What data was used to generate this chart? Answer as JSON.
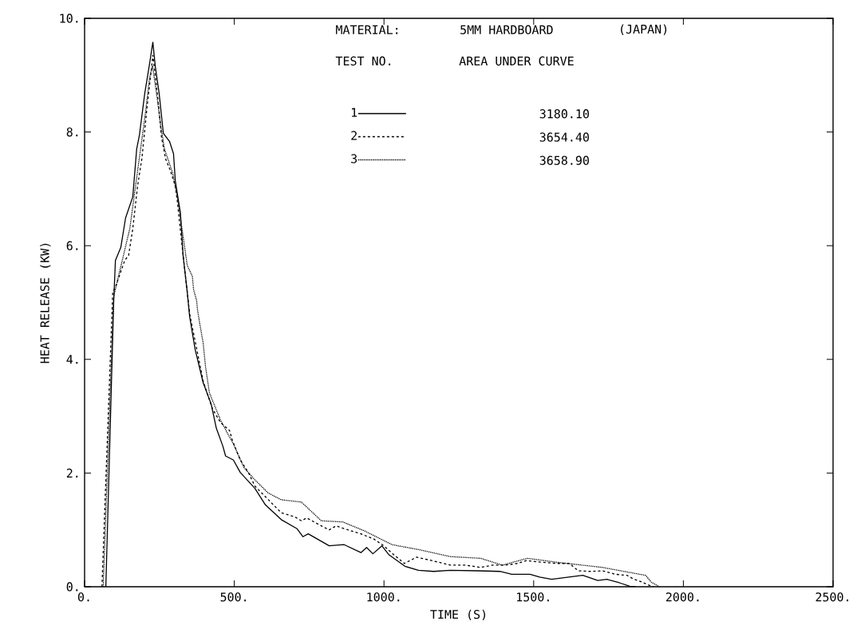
{
  "chart_data": {
    "type": "line",
    "xlabel": "TIME (S)",
    "ylabel": "HEAT RELEASE (KW)",
    "legend_title": "TEST NO.",
    "legend": "top",
    "annotations": [
      "MATERIAL:",
      "5MM HARDBOARD",
      "(JAPAN)",
      "AREA UNDER CURVE",
      "3180.10",
      "3654.40",
      "3658.90"
    ],
    "xlim": [
      0,
      2500
    ],
    "ylim": [
      0,
      10
    ],
    "xticks": [
      {
        "value": 0,
        "label": "0."
      },
      {
        "value": 500,
        "label": "500."
      },
      {
        "value": 1000,
        "label": "1000."
      },
      {
        "value": 1500,
        "label": "1500."
      },
      {
        "value": 2000,
        "label": "2000."
      },
      {
        "value": 2500,
        "label": "2500."
      }
    ],
    "yticks": [
      {
        "value": 0,
        "label": "0."
      },
      {
        "value": 2,
        "label": "2."
      },
      {
        "value": 4,
        "label": "4."
      },
      {
        "value": 6,
        "label": "6."
      },
      {
        "value": 8,
        "label": "8."
      },
      {
        "value": 10,
        "label": "10."
      }
    ],
    "series": [
      {
        "name": "1",
        "color": "#000000",
        "line_style": "solid",
        "x": [
          71,
          97,
          103,
          121,
          137,
          161,
          174,
          183,
          201,
          217,
          228,
          236,
          249,
          263,
          284,
          297,
          303,
          320,
          329,
          343,
          351,
          369,
          396,
          423,
          440,
          462,
          471,
          497,
          520,
          569,
          604,
          657,
          710,
          729,
          747,
          817,
          867,
          923,
          942,
          963,
          993,
          1017,
          1070,
          1115,
          1166,
          1221,
          1315,
          1387,
          1427,
          1488,
          1520,
          1560,
          1664,
          1714,
          1745,
          1786,
          1821,
          1840
        ],
        "values": [
          0,
          4.99,
          5.74,
          5.97,
          6.49,
          6.86,
          7.7,
          7.94,
          8.68,
          9.2,
          9.58,
          9.16,
          8.68,
          7.98,
          7.83,
          7.62,
          7.14,
          6.58,
          5.83,
          5.18,
          4.75,
          4.18,
          3.59,
          3.21,
          2.79,
          2.47,
          2.3,
          2.23,
          2.01,
          1.73,
          1.44,
          1.18,
          1.02,
          0.88,
          0.93,
          0.72,
          0.74,
          0.6,
          0.69,
          0.58,
          0.72,
          0.56,
          0.36,
          0.29,
          0.27,
          0.29,
          0.28,
          0.27,
          0.22,
          0.22,
          0.17,
          0.13,
          0.2,
          0.11,
          0.13,
          0.07,
          0.01,
          0
        ]
      },
      {
        "name": "2",
        "color": "#000000",
        "line_style": "dashed",
        "x": [
          58,
          94,
          103,
          134,
          147,
          161,
          177,
          191,
          200,
          209,
          217,
          228,
          240,
          249,
          257,
          271,
          286,
          303,
          310,
          329,
          351,
          396,
          427,
          454,
          484,
          494,
          520,
          547,
          569,
          614,
          657,
          702,
          724,
          742,
          791,
          817,
          840,
          880,
          923,
          966,
          997,
          1027,
          1068,
          1109,
          1160,
          1222,
          1272,
          1323,
          1363,
          1405,
          1446,
          1476,
          1527,
          1578,
          1619,
          1649,
          1690,
          1730,
          1772,
          1812,
          1832,
          1863,
          1884,
          1900
        ],
        "values": [
          0,
          5.18,
          5.27,
          5.74,
          5.83,
          6.3,
          7.05,
          7.52,
          7.98,
          8.46,
          8.82,
          9.35,
          8.82,
          8.36,
          7.9,
          7.52,
          7.33,
          7.05,
          6.77,
          5.83,
          4.8,
          3.62,
          3.13,
          2.89,
          2.75,
          2.57,
          2.23,
          2.01,
          1.77,
          1.53,
          1.3,
          1.23,
          1.16,
          1.21,
          1.07,
          1.0,
          1.07,
          1.0,
          0.93,
          0.84,
          0.73,
          0.59,
          0.41,
          0.52,
          0.46,
          0.38,
          0.38,
          0.34,
          0.38,
          0.38,
          0.41,
          0.46,
          0.43,
          0.41,
          0.41,
          0.28,
          0.27,
          0.28,
          0.22,
          0.2,
          0.14,
          0.08,
          0.03,
          0
        ]
      },
      {
        "name": "3",
        "color": "#000000",
        "line_style": "dotted",
        "x": [
          62,
          97,
          151,
          204,
          217,
          227,
          244,
          254,
          267,
          294,
          311,
          343,
          360,
          364,
          374,
          377,
          383,
          396,
          404,
          417,
          454,
          497,
          533,
          569,
          613,
          657,
          724,
          791,
          862,
          936,
          1027,
          1119,
          1222,
          1323,
          1395,
          1479,
          1578,
          1730,
          1791,
          1874,
          1893,
          1920
        ],
        "values": [
          0,
          5.1,
          6.3,
          8.36,
          8.96,
          9.16,
          8.54,
          8.12,
          7.7,
          7.28,
          6.82,
          5.65,
          5.46,
          5.23,
          5.04,
          4.88,
          4.68,
          4.29,
          3.87,
          3.41,
          2.93,
          2.51,
          2.09,
          1.88,
          1.65,
          1.53,
          1.49,
          1.16,
          1.14,
          0.98,
          0.74,
          0.65,
          0.53,
          0.5,
          0.38,
          0.5,
          0.43,
          0.34,
          0.28,
          0.2,
          0.08,
          0
        ]
      }
    ]
  }
}
